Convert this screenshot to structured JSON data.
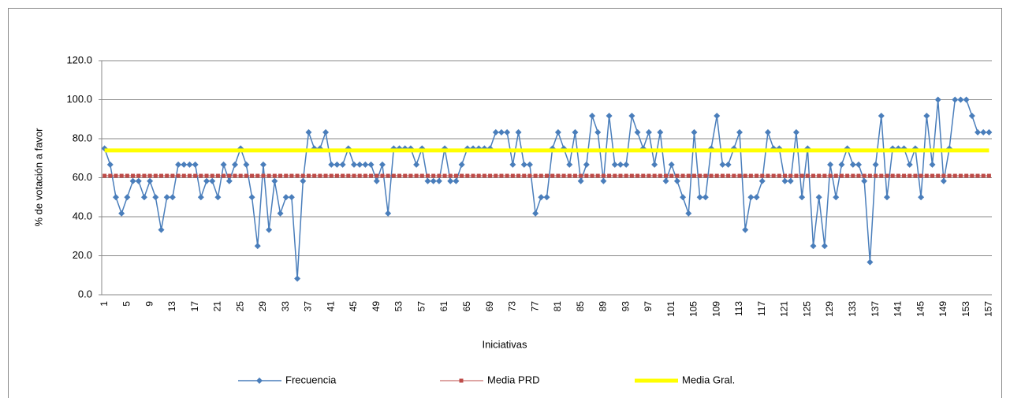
{
  "chart_data": {
    "type": "line",
    "y_label": "% de votación a favor",
    "x_label": "Iniciativas",
    "categories": [
      "1",
      null,
      null,
      null,
      "5",
      null,
      null,
      null,
      "9",
      null,
      null,
      null,
      "13",
      null,
      null,
      null,
      "17",
      null,
      null,
      null,
      "21",
      null,
      null,
      null,
      "25",
      null,
      null,
      null,
      "29",
      null,
      null,
      null,
      "33",
      null,
      null,
      null,
      "37",
      null,
      null,
      null,
      "41",
      null,
      null,
      null,
      "45",
      null,
      null,
      null,
      "49",
      null,
      null,
      null,
      "53",
      null,
      null,
      null,
      "57",
      null,
      null,
      null,
      "61",
      null,
      null,
      null,
      "65",
      null,
      null,
      null,
      "69",
      null,
      null,
      null,
      "73",
      null,
      null,
      null,
      "77",
      null,
      null,
      null,
      "81",
      null,
      null,
      null,
      "85",
      null,
      null,
      null,
      "89",
      null,
      null,
      null,
      "93",
      null,
      null,
      null,
      "97",
      null,
      null,
      null,
      "101",
      null,
      null,
      null,
      "105",
      null,
      null,
      null,
      "109",
      null,
      null,
      null,
      "113",
      null,
      null,
      null,
      "117",
      null,
      null,
      null,
      "121",
      null,
      null,
      null,
      "125",
      null,
      null,
      null,
      "129",
      null,
      null,
      null,
      "133",
      null,
      null,
      null,
      "137",
      null,
      null,
      null,
      "141",
      null,
      null,
      null,
      "145",
      null,
      null,
      null,
      "149",
      null,
      null,
      null,
      "153",
      null,
      null,
      null,
      "157"
    ],
    "series": [
      {
        "name": "Frecuencia",
        "color": "#4a7ebb",
        "marker": "diamond",
        "line_width": 1.5,
        "values": [
          75,
          66.7,
          50,
          41.7,
          50,
          58.3,
          58.3,
          50,
          58.3,
          50,
          33.3,
          50,
          50,
          66.7,
          66.7,
          66.7,
          66.7,
          50,
          58.3,
          58.3,
          50,
          66.7,
          58.3,
          66.7,
          75,
          66.7,
          50,
          25,
          66.7,
          33.3,
          58.3,
          41.7,
          50,
          50,
          8.3,
          58.3,
          83.3,
          75,
          75,
          83.3,
          66.7,
          66.7,
          66.7,
          75,
          66.7,
          66.7,
          66.7,
          66.7,
          58.3,
          66.7,
          41.7,
          75,
          75,
          75,
          75,
          66.7,
          75,
          58.3,
          58.3,
          58.3,
          75,
          58.3,
          58.3,
          66.7,
          75,
          75,
          75,
          75,
          75,
          83.3,
          83.3,
          83.3,
          66.7,
          83.3,
          66.7,
          66.7,
          41.7,
          50,
          50,
          75,
          83.3,
          75,
          66.7,
          83.3,
          58.3,
          66.7,
          91.7,
          83.3,
          58.3,
          91.7,
          66.7,
          66.7,
          66.7,
          91.7,
          83.3,
          75,
          83.3,
          66.7,
          83.3,
          58.3,
          66.7,
          58.3,
          50,
          41.7,
          83.3,
          50,
          50,
          75,
          91.7,
          66.7,
          66.7,
          75,
          83.3,
          33.3,
          50,
          50,
          58.3,
          83.3,
          75,
          75,
          58.3,
          58.3,
          83.3,
          50,
          75,
          25,
          50,
          25,
          66.7,
          50,
          66.7,
          75,
          66.7,
          66.7,
          58.3,
          16.7,
          66.7,
          91.7,
          50,
          75,
          75,
          75,
          66.7,
          75,
          50,
          91.7,
          66.7,
          100,
          58.3,
          75,
          100,
          100,
          100,
          91.7,
          83.3,
          83.3,
          83.3
        ]
      },
      {
        "name": "Media PRD",
        "color": "#be4b48",
        "marker": "square",
        "line_width": 1,
        "values": [
          61,
          61,
          61,
          61,
          61,
          61,
          61,
          61,
          61,
          61,
          61,
          61,
          61,
          61,
          61,
          61,
          61,
          61,
          61,
          61,
          61,
          61,
          61,
          61,
          61,
          61,
          61,
          61,
          61,
          61,
          61,
          61,
          61,
          61,
          61,
          61,
          61,
          61,
          61,
          61,
          61,
          61,
          61,
          61,
          61,
          61,
          61,
          61,
          61,
          61,
          61,
          61,
          61,
          61,
          61,
          61,
          61,
          61,
          61,
          61,
          61,
          61,
          61,
          61,
          61,
          61,
          61,
          61,
          61,
          61,
          61,
          61,
          61,
          61,
          61,
          61,
          61,
          61,
          61,
          61,
          61,
          61,
          61,
          61,
          61,
          61,
          61,
          61,
          61,
          61,
          61,
          61,
          61,
          61,
          61,
          61,
          61,
          61,
          61,
          61,
          61,
          61,
          61,
          61,
          61,
          61,
          61,
          61,
          61,
          61,
          61,
          61,
          61,
          61,
          61,
          61,
          61,
          61,
          61,
          61,
          61,
          61,
          61,
          61,
          61,
          61,
          61,
          61,
          61,
          61,
          61,
          61,
          61,
          61,
          61,
          61,
          61,
          61,
          61,
          61,
          61,
          61,
          61,
          61,
          61,
          61,
          61,
          61,
          61,
          61,
          61,
          61,
          61,
          61,
          61,
          61,
          61
        ]
      },
      {
        "name": "Media Gral.",
        "color": "#ffff00",
        "marker": "none",
        "line_width": 5,
        "values": [
          74,
          74,
          74,
          74,
          74,
          74,
          74,
          74,
          74,
          74,
          74,
          74,
          74,
          74,
          74,
          74,
          74,
          74,
          74,
          74,
          74,
          74,
          74,
          74,
          74,
          74,
          74,
          74,
          74,
          74,
          74,
          74,
          74,
          74,
          74,
          74,
          74,
          74,
          74,
          74,
          74,
          74,
          74,
          74,
          74,
          74,
          74,
          74,
          74,
          74,
          74,
          74,
          74,
          74,
          74,
          74,
          74,
          74,
          74,
          74,
          74,
          74,
          74,
          74,
          74,
          74,
          74,
          74,
          74,
          74,
          74,
          74,
          74,
          74,
          74,
          74,
          74,
          74,
          74,
          74,
          74,
          74,
          74,
          74,
          74,
          74,
          74,
          74,
          74,
          74,
          74,
          74,
          74,
          74,
          74,
          74,
          74,
          74,
          74,
          74,
          74,
          74,
          74,
          74,
          74,
          74,
          74,
          74,
          74,
          74,
          74,
          74,
          74,
          74,
          74,
          74,
          74,
          74,
          74,
          74,
          74,
          74,
          74,
          74,
          74,
          74,
          74,
          74,
          74,
          74,
          74,
          74,
          74,
          74,
          74,
          74,
          74,
          74,
          74,
          74,
          74,
          74,
          74,
          74,
          74,
          74,
          74,
          74,
          74,
          74,
          74,
          74,
          74,
          74,
          74,
          74,
          74
        ]
      }
    ],
    "ylim": [
      0,
      120
    ],
    "yticks": [
      {
        "value": 0,
        "label": "0.0"
      },
      {
        "value": 20,
        "label": "20.0"
      },
      {
        "value": 40,
        "label": "40.0"
      },
      {
        "value": 60,
        "label": "60.0"
      },
      {
        "value": 80,
        "label": "80.0"
      },
      {
        "value": 100,
        "label": "100.0"
      },
      {
        "value": 120,
        "label": "120.0"
      }
    ],
    "grid": true,
    "legend": "bottom"
  }
}
